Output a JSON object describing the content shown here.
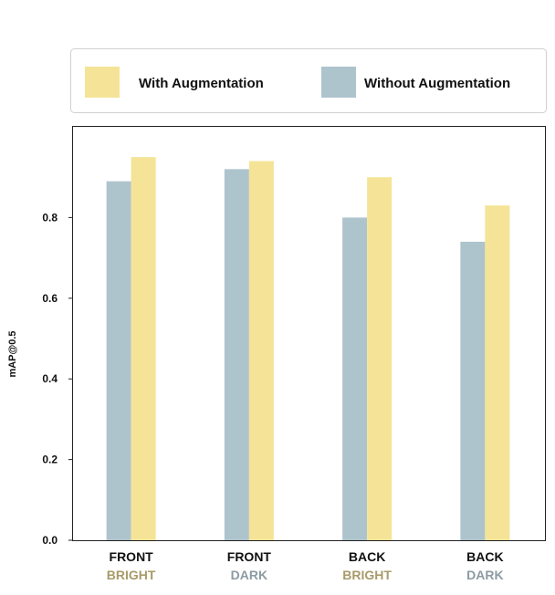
{
  "chart_data": {
    "type": "bar",
    "categories": [
      {
        "line1": "FRONT",
        "line2": "BRIGHT",
        "line2_color": "#a89a6a"
      },
      {
        "line1": "FRONT",
        "line2": "DARK",
        "line2_color": "#8c9ba3"
      },
      {
        "line1": "BACK",
        "line2": "BRIGHT",
        "line2_color": "#a89a6a"
      },
      {
        "line1": "BACK",
        "line2": "DARK",
        "line2_color": "#8c9ba3"
      }
    ],
    "series": [
      {
        "name": "Without Augmentation",
        "color": "#aec4cd",
        "values": [
          0.89,
          0.92,
          0.8,
          0.74
        ]
      },
      {
        "name": "With Augmentation",
        "color": "#f5e497",
        "values": [
          0.95,
          0.94,
          0.9,
          0.83
        ]
      }
    ],
    "legend_order": [
      1,
      0
    ],
    "ylabel": "mAP@0.5",
    "xlabel": "",
    "ylim": [
      0,
      1.0
    ],
    "yticks": [
      0.0,
      0.2,
      0.4,
      0.6,
      0.8
    ],
    "ytick_labels": [
      "0.0",
      "0.2",
      "0.4",
      "0.6",
      "0.8"
    ],
    "grid": false,
    "legend_position": "top"
  }
}
